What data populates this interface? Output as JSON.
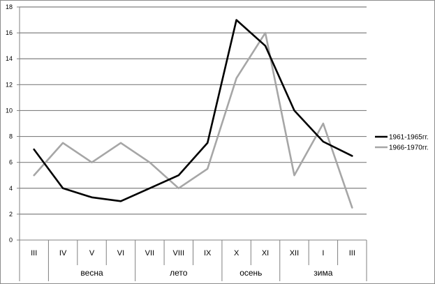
{
  "chart_data": {
    "type": "line",
    "title": "",
    "xlabel": "",
    "ylabel": "",
    "categories": [
      "III",
      "IV",
      "V",
      "VI",
      "VII",
      "VIII",
      "IX",
      "X",
      "XI",
      "XII",
      "I",
      "III"
    ],
    "groups": [
      {
        "label": "весна",
        "from": 1,
        "to": 3
      },
      {
        "label": "лето",
        "from": 4,
        "to": 6
      },
      {
        "label": "осень",
        "from": 7,
        "to": 8
      },
      {
        "label": "зима",
        "from": 9,
        "to": 11
      }
    ],
    "ylim": [
      0,
      18
    ],
    "yticks": [
      0,
      2,
      4,
      6,
      8,
      10,
      12,
      14,
      16,
      18
    ],
    "grid": true,
    "legend_position": "right",
    "series": [
      {
        "name": "1961-1965гг.",
        "color": "#000000",
        "values": [
          7,
          4,
          3.3,
          3,
          4,
          5,
          7.5,
          17,
          15,
          10,
          7.6,
          6.5
        ]
      },
      {
        "name": "1966-1970гг.",
        "color": "#a6a6a6",
        "values": [
          5,
          7.5,
          6,
          7.5,
          6,
          4,
          5.5,
          12.5,
          16,
          5,
          9,
          2.5
        ]
      }
    ]
  }
}
